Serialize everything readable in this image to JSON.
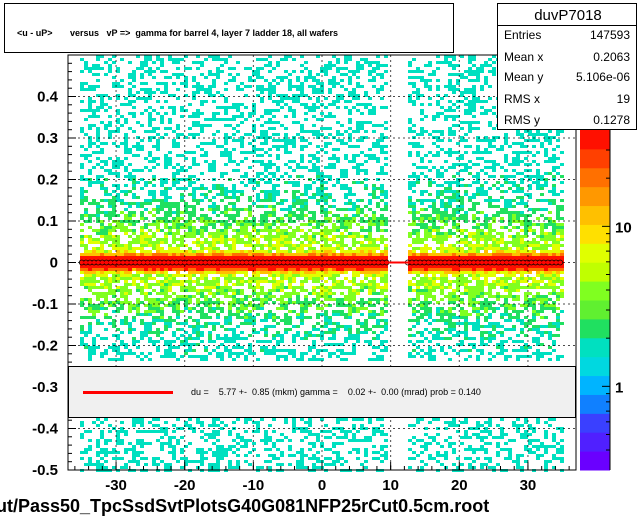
{
  "title": "<u - uP>       versus   vP =>  gamma for barrel 4, layer 7 ladder 18, all wafers",
  "stats": {
    "name": "duvP7018",
    "rows": [
      {
        "label": "Entries",
        "value": "147593"
      },
      {
        "label": "Mean x",
        "value": "0.2063"
      },
      {
        "label": "Mean y",
        "value": "5.106e-06"
      },
      {
        "label": "RMS x",
        "value": "19"
      },
      {
        "label": "RMS y",
        "value": "0.1278"
      }
    ]
  },
  "fit_text": "du =    5.77 +-  0.85 (mkm) gamma =    0.02 +-  0.00 (mrad) prob = 0.140",
  "footer": "ut/Pass50_TpcSsdSvtPlotsG40G081NFP25rCut0.5cm.root",
  "colors": {
    "fit_line": "#ff0000",
    "palette": [
      "#6a00ff",
      "#3a40ff",
      "#00b4ff",
      "#00e0c0",
      "#20e060",
      "#80ff20",
      "#e0ff00",
      "#ffc000",
      "#ff7000",
      "#ff1000"
    ]
  },
  "chart_data": {
    "type": "heatmap",
    "xlim": [
      -37,
      37
    ],
    "ylim": [
      -0.5,
      0.5
    ],
    "x_ticks": [
      -30,
      -20,
      -10,
      0,
      10,
      20,
      30
    ],
    "x_tick_labels": [
      "-30",
      "-20",
      "-10",
      "0",
      "10",
      "20",
      "30"
    ],
    "y_ticks": [
      -0.5,
      -0.4,
      -0.3,
      -0.2,
      -0.1,
      0,
      0.1,
      0.2,
      0.3,
      0.4
    ],
    "y_tick_labels": [
      "-0.5",
      "-0.4",
      "-0.3",
      "-0.2",
      "-0.1",
      "0",
      "0.1",
      "0.2",
      "0.3",
      "0.4"
    ],
    "z_scale": "log",
    "z_ticks": [
      1,
      10
    ],
    "z_tick_labels": [
      "1",
      "10"
    ],
    "filled_x_ranges": [
      [
        -35,
        9.5
      ],
      [
        12.5,
        35
      ]
    ],
    "grid": true,
    "fit_line": {
      "slope": 0.0,
      "intercept": 0.0
    }
  }
}
